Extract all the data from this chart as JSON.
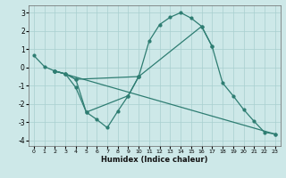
{
  "xlabel": "Humidex (Indice chaleur)",
  "xlim": [
    -0.5,
    23.5
  ],
  "ylim": [
    -4.3,
    3.4
  ],
  "xticks": [
    0,
    1,
    2,
    3,
    4,
    5,
    6,
    7,
    8,
    9,
    10,
    11,
    12,
    13,
    14,
    15,
    16,
    17,
    18,
    19,
    20,
    21,
    22,
    23
  ],
  "yticks": [
    -4,
    -3,
    -2,
    -1,
    0,
    1,
    2,
    3
  ],
  "bg_color": "#cde8e8",
  "grid_color": "#a8cfcf",
  "line_color": "#2e7d72",
  "series1_x": [
    0,
    1,
    2,
    3,
    4,
    5,
    6,
    7,
    8,
    9,
    10
  ],
  "series1_y": [
    0.65,
    0.05,
    -0.2,
    -0.35,
    -1.1,
    -2.45,
    -2.85,
    -3.3,
    -2.4,
    -1.55,
    -0.5
  ],
  "series2_x": [
    2,
    3,
    4,
    5,
    9,
    10,
    11,
    12,
    13,
    14,
    15,
    16,
    17
  ],
  "series2_y": [
    -0.2,
    -0.35,
    -0.65,
    -2.45,
    -1.55,
    -0.5,
    1.45,
    2.35,
    2.75,
    3.0,
    2.7,
    2.25,
    1.15
  ],
  "series3_x": [
    2,
    3,
    4,
    10,
    16,
    17,
    18,
    19,
    20,
    21,
    22,
    23
  ],
  "series3_y": [
    -0.2,
    -0.35,
    -0.65,
    -0.5,
    2.25,
    1.15,
    -0.85,
    -1.55,
    -2.3,
    -2.95,
    -3.55,
    -3.65
  ],
  "series4_x": [
    2,
    23
  ],
  "series4_y": [
    -0.2,
    -3.65
  ]
}
